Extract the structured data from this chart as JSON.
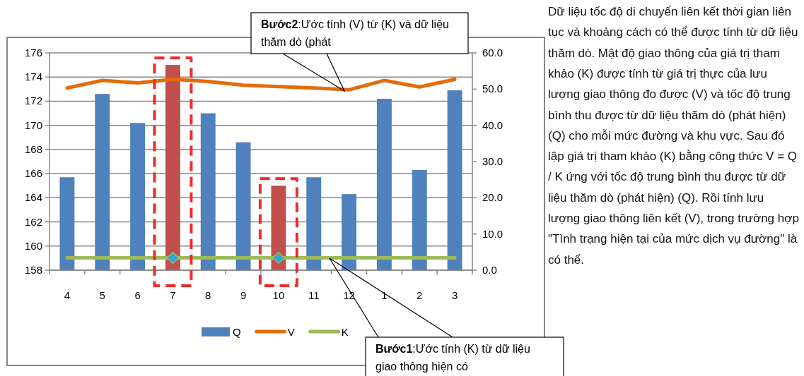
{
  "chart_data": {
    "type": "bar",
    "categories": [
      "4",
      "5",
      "6",
      "7",
      "8",
      "9",
      "10",
      "11",
      "12",
      "1",
      "2",
      "3"
    ],
    "series": [
      {
        "name": "Q",
        "color": "#4f81bd",
        "colors": [
          "#4f81bd",
          "#4f81bd",
          "#4f81bd",
          "#c0504d",
          "#4f81bd",
          "#4f81bd",
          "#c0504d",
          "#4f81bd",
          "#4f81bd",
          "#4f81bd",
          "#4f81bd",
          "#4f81bd"
        ],
        "values": [
          165.7,
          172.6,
          170.2,
          175.0,
          171.0,
          168.6,
          165.0,
          165.7,
          164.3,
          172.2,
          166.3,
          172.9
        ]
      },
      {
        "name": "V",
        "type": "line",
        "axis": "y2",
        "color": "#e46c0a",
        "marker": "none",
        "values": [
          50.3,
          52.4,
          51.7,
          52.7,
          52.1,
          51.1,
          50.7,
          50.3,
          49.8,
          52.4,
          50.6,
          52.7
        ]
      },
      {
        "name": "K",
        "type": "line",
        "axis": "y2",
        "color": "#9bbb59",
        "marker": "none",
        "values": [
          3.4,
          3.4,
          3.4,
          3.4,
          3.4,
          3.4,
          3.4,
          3.4,
          3.4,
          3.4,
          3.4,
          3.4
        ]
      },
      {
        "type": "scatter",
        "axis": "y2",
        "color": "#2ba6de",
        "marker": "diamond",
        "x": [
          "7",
          "10"
        ],
        "values": [
          3.4,
          3.4
        ]
      }
    ],
    "ylim": [
      158,
      176
    ],
    "yticks": [
      158,
      160,
      162,
      164,
      166,
      168,
      170,
      172,
      174,
      176
    ],
    "y2lim": [
      0,
      60
    ],
    "y2ticks": [
      {
        "value": 0,
        "label": "0.0"
      },
      {
        "value": 10,
        "label": "10.0"
      },
      {
        "value": 20,
        "label": "20.0"
      },
      {
        "value": 30,
        "label": "30.0"
      },
      {
        "value": 40,
        "label": "40.0"
      },
      {
        "value": 50,
        "label": "50.0"
      },
      {
        "value": 60,
        "label": "60.0"
      }
    ],
    "grid": "y",
    "legend": "bottom",
    "annotations": [
      "Bước2:Ước tính (V) từ (K) và dữ liệu thăm dò (phát",
      "Bước1:Ước tính (K) từ dữ liệu giao thông hiện có",
      "Dữ liệu tốc độ di chuyển liên kết thời gian liên tục và khoảng cách có thể được tính từ dữ liệu thăm dò. Mật độ giao thông của giá trị tham khảo (K) được tính từ giá trị thực của lưu lượng giao thông đo được (V) và tốc độ trung bình thu được từ dữ liệu thăm dò (phát hiện) (Q) cho mỗi mức đường và khu vực. Sau đó lập giá trị tham khảo (K) bằng công thức V = Q / K ứng với tốc độ trung bình thu được từ dữ liệu thăm dò (phát hiện) (Q). Rồi tính lưu lượng giao thông liên kết (V), trong trường hợp \"Tình trạng hiện tại của mức dịch vụ đường\" là có thể."
    ]
  }
}
